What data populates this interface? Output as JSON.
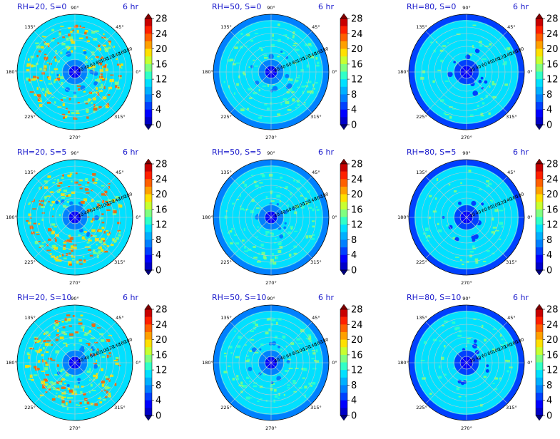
{
  "figure": {
    "background": "#ffffff",
    "title_color": "#1a1acc"
  },
  "chart_data": [
    {
      "type": "heatmap",
      "projection": "polar",
      "title": "RH=20, S=0",
      "time_label": "6 hr",
      "ring_labels": [
        "20",
        "40",
        "60",
        "80",
        "100",
        "120",
        "140",
        "160",
        "180"
      ],
      "angle_labels": [
        "90°",
        "45°",
        "0°",
        "315°",
        "270°",
        "225°",
        "180°",
        "135°"
      ],
      "colorbar_ticks": [
        "0",
        "4",
        "8",
        "12",
        "16",
        "20",
        "24",
        "28"
      ],
      "pattern": {
        "core_level": 2,
        "inner_level": 4,
        "background_level": 6,
        "hot_density": 0.55,
        "hot_levels": [
          8,
          10,
          12
        ],
        "edge_level": null
      }
    },
    {
      "type": "heatmap",
      "projection": "polar",
      "title": "RH=50, S=0",
      "time_label": "6 hr",
      "ring_labels": [
        "20",
        "40",
        "60",
        "80",
        "100",
        "120",
        "140",
        "160",
        "180"
      ],
      "angle_labels": [
        "90°",
        "45°",
        "0°",
        "315°",
        "270°",
        "225°",
        "180°",
        "135°"
      ],
      "colorbar_ticks": [
        "0",
        "4",
        "8",
        "12",
        "16",
        "20",
        "24",
        "28"
      ],
      "pattern": {
        "core_level": 2,
        "inner_level": 4,
        "background_level": 6,
        "hot_density": 0.25,
        "hot_levels": [
          7,
          8
        ],
        "edge_level": 4
      }
    },
    {
      "type": "heatmap",
      "projection": "polar",
      "title": "RH=80, S=0",
      "time_label": "6 hr",
      "ring_labels": [
        "20",
        "40",
        "60",
        "80",
        "100",
        "120",
        "140",
        "160",
        "180"
      ],
      "angle_labels": [
        "90°",
        "45°",
        "0°",
        "315°",
        "270°",
        "225°",
        "180°",
        "135°"
      ],
      "colorbar_ticks": [
        "0",
        "4",
        "8",
        "12",
        "16",
        "20",
        "24",
        "28"
      ],
      "pattern": {
        "core_level": 2,
        "inner_level": 3,
        "background_level": 6,
        "hot_density": 0.12,
        "hot_levels": [
          7,
          8
        ],
        "edge_level": 3
      }
    },
    {
      "type": "heatmap",
      "projection": "polar",
      "title": "RH=20, S=5",
      "time_label": "6 hr",
      "ring_labels": [
        "20",
        "40",
        "60",
        "80",
        "100",
        "120",
        "140",
        "160",
        "180"
      ],
      "angle_labels": [
        "90°",
        "45°",
        "0°",
        "315°",
        "270°",
        "225°",
        "180°",
        "135°"
      ],
      "colorbar_ticks": [
        "0",
        "4",
        "8",
        "12",
        "16",
        "20",
        "24",
        "28"
      ],
      "pattern": {
        "core_level": 2,
        "inner_level": 4,
        "background_level": 6,
        "hot_density": 0.55,
        "hot_levels": [
          8,
          10,
          12
        ],
        "edge_level": null
      }
    },
    {
      "type": "heatmap",
      "projection": "polar",
      "title": "RH=50, S=5",
      "time_label": "6 hr",
      "ring_labels": [
        "20",
        "40",
        "60",
        "80",
        "100",
        "120",
        "140",
        "160",
        "180"
      ],
      "angle_labels": [
        "90°",
        "45°",
        "0°",
        "315°",
        "270°",
        "225°",
        "180°",
        "135°"
      ],
      "colorbar_ticks": [
        "0",
        "4",
        "8",
        "12",
        "16",
        "20",
        "24",
        "28"
      ],
      "pattern": {
        "core_level": 2,
        "inner_level": 4,
        "background_level": 6,
        "hot_density": 0.25,
        "hot_levels": [
          7,
          8
        ],
        "edge_level": 4
      }
    },
    {
      "type": "heatmap",
      "projection": "polar",
      "title": "RH=80, S=5",
      "time_label": "6 hr",
      "ring_labels": [
        "20",
        "40",
        "60",
        "80",
        "100",
        "120",
        "140",
        "160",
        "180"
      ],
      "angle_labels": [
        "90°",
        "45°",
        "0°",
        "315°",
        "270°",
        "225°",
        "180°",
        "135°"
      ],
      "colorbar_ticks": [
        "0",
        "4",
        "8",
        "12",
        "16",
        "20",
        "24",
        "28"
      ],
      "pattern": {
        "core_level": 2,
        "inner_level": 3,
        "background_level": 6,
        "hot_density": 0.12,
        "hot_levels": [
          7,
          8
        ],
        "edge_level": 3
      }
    },
    {
      "type": "heatmap",
      "projection": "polar",
      "title": "RH=20, S=10",
      "time_label": "6 hr",
      "ring_labels": [
        "20",
        "40",
        "60",
        "80",
        "100",
        "120",
        "140",
        "160",
        "180"
      ],
      "angle_labels": [
        "90°",
        "45°",
        "0°",
        "315°",
        "270°",
        "225°",
        "180°",
        "135°"
      ],
      "colorbar_ticks": [
        "0",
        "4",
        "8",
        "12",
        "16",
        "20",
        "24",
        "28"
      ],
      "pattern": {
        "core_level": 2,
        "inner_level": 4,
        "background_level": 6,
        "hot_density": 0.55,
        "hot_levels": [
          8,
          10,
          12
        ],
        "edge_level": null
      }
    },
    {
      "type": "heatmap",
      "projection": "polar",
      "title": "RH=50, S=10",
      "time_label": "6 hr",
      "ring_labels": [
        "20",
        "40",
        "60",
        "80",
        "100",
        "120",
        "140",
        "160",
        "180"
      ],
      "angle_labels": [
        "90°",
        "45°",
        "0°",
        "315°",
        "270°",
        "225°",
        "180°",
        "135°"
      ],
      "colorbar_ticks": [
        "0",
        "4",
        "8",
        "12",
        "16",
        "20",
        "24",
        "28"
      ],
      "pattern": {
        "core_level": 2,
        "inner_level": 4,
        "background_level": 6,
        "hot_density": 0.25,
        "hot_levels": [
          7,
          8
        ],
        "edge_level": 4
      }
    },
    {
      "type": "heatmap",
      "projection": "polar",
      "title": "RH=80, S=10",
      "time_label": "6 hr",
      "ring_labels": [
        "20",
        "40",
        "60",
        "80",
        "100",
        "120",
        "140",
        "160",
        "180"
      ],
      "angle_labels": [
        "90°",
        "45°",
        "0°",
        "315°",
        "270°",
        "225°",
        "180°",
        "135°"
      ],
      "colorbar_ticks": [
        "0",
        "4",
        "8",
        "12",
        "16",
        "20",
        "24",
        "28"
      ],
      "pattern": {
        "core_level": 2,
        "inner_level": 3,
        "background_level": 6,
        "hot_density": 0.12,
        "hot_levels": [
          7,
          8
        ],
        "edge_level": 3
      }
    }
  ],
  "colormap": {
    "name": "jet",
    "levels": [
      0,
      2,
      4,
      6,
      8,
      10,
      12,
      14,
      16,
      18,
      20,
      22,
      24,
      26,
      28
    ],
    "colors": [
      "#00007f",
      "#0000c8",
      "#0000ff",
      "#0040ff",
      "#0080ff",
      "#00b0ff",
      "#00e0ff",
      "#30ffc8",
      "#80ff80",
      "#c8ff30",
      "#ffe000",
      "#ffa000",
      "#ff6000",
      "#ff2000",
      "#c80000",
      "#7f0000"
    ]
  }
}
